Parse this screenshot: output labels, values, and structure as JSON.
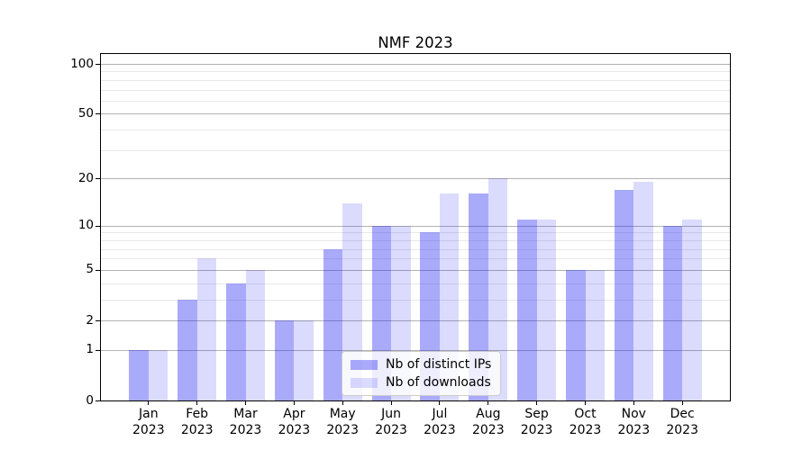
{
  "chart_data": {
    "type": "bar",
    "title": "NMF 2023",
    "categories": [
      "Jan",
      "Feb",
      "Mar",
      "Apr",
      "May",
      "Jun",
      "Jul",
      "Aug",
      "Sep",
      "Oct",
      "Nov",
      "Dec"
    ],
    "year_label": "2023",
    "series": [
      {
        "id": "distinct-ips",
        "name": "Nb of distinct IPs",
        "values": [
          1,
          3,
          4,
          2,
          7,
          10,
          9,
          16,
          11,
          5,
          17,
          10
        ],
        "color": "rgba(31,31,245,0.38)"
      },
      {
        "id": "downloads",
        "name": "Nb of downloads",
        "values": [
          1,
          6,
          5,
          2,
          14,
          10,
          16,
          20,
          11,
          5,
          19,
          11
        ],
        "color": "rgba(31,31,245,0.16)"
      }
    ],
    "xlabel": "",
    "ylabel": "",
    "yscale": "log1p",
    "ylim": [
      0,
      115
    ],
    "y_major_ticks": [
      0,
      1,
      2,
      5,
      10,
      20,
      50,
      100
    ],
    "y_minor_gridlines": [
      3,
      4,
      6,
      7,
      8,
      9,
      30,
      40,
      60,
      70,
      80,
      90
    ],
    "grid": true,
    "legend_position": "inside lower-center",
    "colors": {
      "major_gridline": "#b2b2b2",
      "minor_gridline": "#e8e8e8",
      "axis_spine": "#000000",
      "background": "#ffffff"
    }
  }
}
